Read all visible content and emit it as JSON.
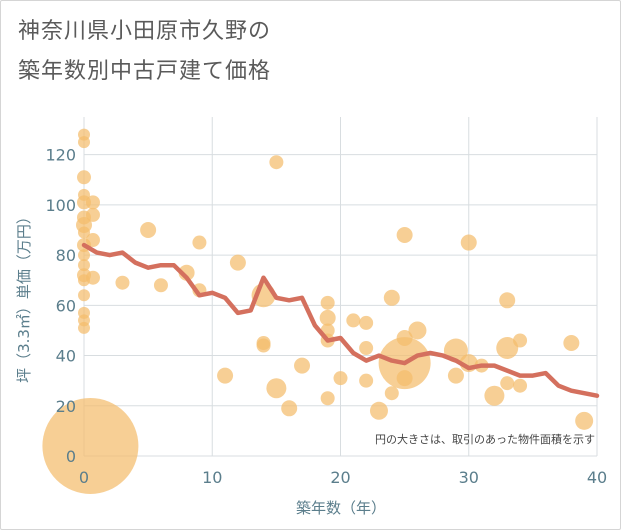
{
  "title_lines": [
    "神奈川県小田原市久野の",
    "築年数別中古戸建て価格"
  ],
  "chart_data": {
    "type": "scatter",
    "xlabel": "築年数（年）",
    "ylabel": "坪（3.3㎡）単価（万円）",
    "xlim": [
      0,
      40
    ],
    "ylim": [
      0,
      135
    ],
    "xticks": [
      "0",
      "10",
      "20",
      "30",
      "40"
    ],
    "yticks": [
      "0",
      "20",
      "40",
      "60",
      "80",
      "100",
      "120"
    ],
    "x_tick_values": [
      0,
      10,
      20,
      30,
      40
    ],
    "y_tick_values": [
      0,
      20,
      40,
      60,
      80,
      100,
      120
    ],
    "grid": true,
    "note": "円の大きさは、取引のあった物件面積を示す",
    "colors": {
      "bubble": "#f4bd6c",
      "trend": "#d4705e",
      "grid": "#d8dde0",
      "axis_text": "#5b7e8c"
    },
    "points": [
      {
        "x": 0,
        "y": 128,
        "r": 6
      },
      {
        "x": 0,
        "y": 125,
        "r": 6
      },
      {
        "x": 0,
        "y": 111,
        "r": 7
      },
      {
        "x": 0,
        "y": 104,
        "r": 6
      },
      {
        "x": 0,
        "y": 101,
        "r": 7
      },
      {
        "x": 0,
        "y": 95,
        "r": 7
      },
      {
        "x": 0,
        "y": 92,
        "r": 8
      },
      {
        "x": 0,
        "y": 89,
        "r": 6
      },
      {
        "x": 0,
        "y": 84,
        "r": 7
      },
      {
        "x": 0,
        "y": 80,
        "r": 6
      },
      {
        "x": 0,
        "y": 76,
        "r": 6
      },
      {
        "x": 0,
        "y": 72,
        "r": 7
      },
      {
        "x": 0,
        "y": 70,
        "r": 6
      },
      {
        "x": 0,
        "y": 64,
        "r": 6
      },
      {
        "x": 0,
        "y": 57,
        "r": 6
      },
      {
        "x": 0,
        "y": 54,
        "r": 6
      },
      {
        "x": 0,
        "y": 51,
        "r": 6
      },
      {
        "x": 0.5,
        "y": 4,
        "r": 48
      },
      {
        "x": 0.7,
        "y": 101,
        "r": 7
      },
      {
        "x": 0.7,
        "y": 96,
        "r": 7
      },
      {
        "x": 0.7,
        "y": 86,
        "r": 7
      },
      {
        "x": 0.7,
        "y": 71,
        "r": 7
      },
      {
        "x": 3,
        "y": 69,
        "r": 7
      },
      {
        "x": 5,
        "y": 90,
        "r": 8
      },
      {
        "x": 6,
        "y": 68,
        "r": 7
      },
      {
        "x": 8,
        "y": 73,
        "r": 8
      },
      {
        "x": 9,
        "y": 85,
        "r": 7
      },
      {
        "x": 9,
        "y": 66,
        "r": 7
      },
      {
        "x": 11,
        "y": 32,
        "r": 8
      },
      {
        "x": 12,
        "y": 77,
        "r": 8
      },
      {
        "x": 14,
        "y": 64,
        "r": 12
      },
      {
        "x": 14,
        "y": 45,
        "r": 7
      },
      {
        "x": 14,
        "y": 44,
        "r": 7
      },
      {
        "x": 15,
        "y": 117,
        "r": 7
      },
      {
        "x": 15,
        "y": 27,
        "r": 10
      },
      {
        "x": 16,
        "y": 19,
        "r": 8
      },
      {
        "x": 17,
        "y": 36,
        "r": 8
      },
      {
        "x": 19,
        "y": 61,
        "r": 7
      },
      {
        "x": 19,
        "y": 55,
        "r": 8
      },
      {
        "x": 19,
        "y": 50,
        "r": 7
      },
      {
        "x": 19,
        "y": 46,
        "r": 7
      },
      {
        "x": 19,
        "y": 23,
        "r": 7
      },
      {
        "x": 20,
        "y": 31,
        "r": 7
      },
      {
        "x": 21,
        "y": 54,
        "r": 7
      },
      {
        "x": 22,
        "y": 53,
        "r": 7
      },
      {
        "x": 22,
        "y": 43,
        "r": 7
      },
      {
        "x": 22,
        "y": 30,
        "r": 7
      },
      {
        "x": 23,
        "y": 18,
        "r": 9
      },
      {
        "x": 24,
        "y": 63,
        "r": 8
      },
      {
        "x": 24,
        "y": 25,
        "r": 7
      },
      {
        "x": 25,
        "y": 88,
        "r": 8
      },
      {
        "x": 25,
        "y": 47,
        "r": 8
      },
      {
        "x": 25,
        "y": 37,
        "r": 26
      },
      {
        "x": 25,
        "y": 31,
        "r": 8
      },
      {
        "x": 26,
        "y": 50,
        "r": 9
      },
      {
        "x": 29,
        "y": 42,
        "r": 12
      },
      {
        "x": 29,
        "y": 32,
        "r": 8
      },
      {
        "x": 30,
        "y": 85,
        "r": 8
      },
      {
        "x": 30,
        "y": 37,
        "r": 9
      },
      {
        "x": 31,
        "y": 36,
        "r": 7
      },
      {
        "x": 32,
        "y": 24,
        "r": 10
      },
      {
        "x": 33,
        "y": 62,
        "r": 8
      },
      {
        "x": 33,
        "y": 43,
        "r": 11
      },
      {
        "x": 33,
        "y": 29,
        "r": 7
      },
      {
        "x": 34,
        "y": 46,
        "r": 7
      },
      {
        "x": 34,
        "y": 28,
        "r": 7
      },
      {
        "x": 38,
        "y": 45,
        "r": 8
      },
      {
        "x": 39,
        "y": 14,
        "r": 9
      }
    ],
    "trend": {
      "x": [
        0,
        1,
        2,
        3,
        4,
        5,
        6,
        7,
        8,
        9,
        10,
        11,
        12,
        13,
        14,
        15,
        16,
        17,
        18,
        19,
        20,
        21,
        22,
        23,
        24,
        25,
        26,
        27,
        28,
        29,
        30,
        31,
        32,
        33,
        34,
        35,
        36,
        37,
        38,
        39,
        40
      ],
      "y": [
        84,
        81,
        80,
        81,
        77,
        75,
        76,
        76,
        71,
        64,
        65,
        63,
        57,
        58,
        71,
        63,
        62,
        63,
        52,
        46,
        47,
        41,
        38,
        40,
        38,
        37,
        40,
        41,
        40,
        38,
        35,
        36,
        36,
        34,
        32,
        32,
        33,
        28,
        26,
        25,
        24
      ]
    }
  }
}
